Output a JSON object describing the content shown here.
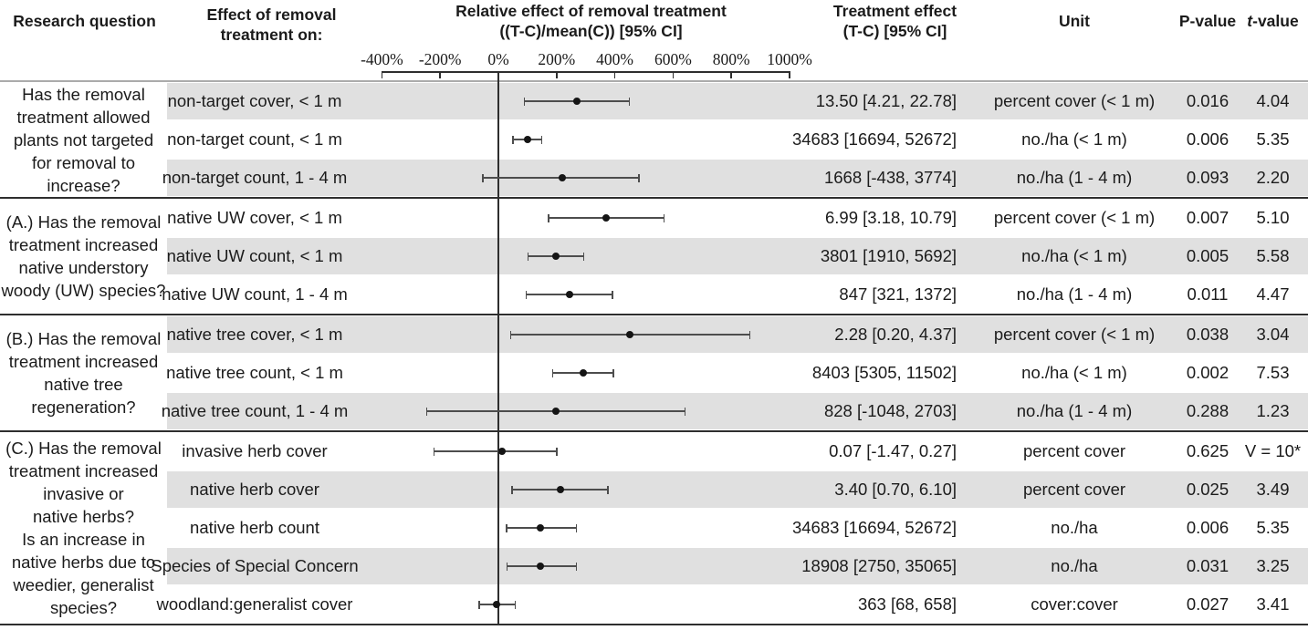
{
  "header": {
    "research_question": "Research question",
    "effect_on": "Effect of removal\ntreatment on:",
    "relative_effect": "Relative effect of removal treatment\n((T-C)/mean(C)) [95% CI]",
    "treatment_effect": "Treatment effect\n(T-C) [95% CI]",
    "unit": "Unit",
    "p_value": "P-value",
    "t_value_italic": "t",
    "t_value_rest": "-value"
  },
  "colors": {
    "stripe": "#e0e0e0",
    "text": "#1b1b1b",
    "dark_line": "#2e2e2e",
    "gray_line": "#ababab",
    "ci_line": "#4d4d4d",
    "marker": "#151515"
  },
  "chart_data": {
    "type": "scatter",
    "variant": "forest-plot",
    "title": "Relative effect of removal treatment ((T-C)/mean(C)) [95% CI]",
    "x_axis": {
      "unit": "percent",
      "tick_values": [
        -400,
        -200,
        0,
        200,
        400,
        600,
        800,
        1000
      ],
      "tick_labels": [
        "-400%",
        "-200%",
        "0%",
        "200%",
        "400%",
        "600%",
        "800%",
        "1000%"
      ],
      "range": [
        -400,
        1000
      ],
      "zero_reference_line": 0
    },
    "groups": [
      {
        "question": "Has the removal\ntreatment allowed\nplants not targeted\nfor removal to\nincrease?",
        "rows": [
          {
            "label": "non-target cover, < 1 m",
            "relative_pct": {
              "est": 270,
              "lo": 87,
              "hi": 452
            },
            "effect": "13.50 [4.21, 22.78]",
            "unit": "percent cover (< 1 m)",
            "p": "0.016",
            "t": "4.04"
          },
          {
            "label": "non-target count, < 1 m",
            "relative_pct": {
              "est": 100,
              "lo": 48,
              "hi": 152
            },
            "effect": "34683 [16694, 52672]",
            "unit": "no./ha (< 1 m)",
            "p": "0.006",
            "t": "5.35"
          },
          {
            "label": "non-target count, 1 - 4 m",
            "relative_pct": {
              "est": 218,
              "lo": -55,
              "hi": 485
            },
            "effect": "1668 [-438, 3774]",
            "unit": "no./ha (1 - 4 m)",
            "p": "0.093",
            "t": "2.20"
          }
        ]
      },
      {
        "question": "(A.) Has the removal\ntreatment increased\nnative understory\nwoody (UW) species?",
        "rows": [
          {
            "label": "native UW cover, < 1 m",
            "relative_pct": {
              "est": 370,
              "lo": 170,
              "hi": 572
            },
            "effect": "6.99 [3.18, 10.79]",
            "unit": "percent cover (< 1 m)",
            "p": "0.007",
            "t": "5.10"
          },
          {
            "label": "native UW count, < 1 m",
            "relative_pct": {
              "est": 197,
              "lo": 99,
              "hi": 295
            },
            "effect": "3801 [1910, 5692]",
            "unit": "no./ha (< 1 m)",
            "p": "0.005",
            "t": "5.58"
          },
          {
            "label": "native UW count, 1 - 4 m",
            "relative_pct": {
              "est": 244,
              "lo": 93,
              "hi": 395
            },
            "effect": "847 [321, 1372]",
            "unit": "no./ha (1 - 4 m)",
            "p": "0.011",
            "t": "4.47"
          }
        ]
      },
      {
        "question": "(B.) Has the removal\ntreatment increased\nnative tree\nregeneration?",
        "rows": [
          {
            "label": "native tree cover, < 1 m",
            "relative_pct": {
              "est": 452,
              "lo": 40,
              "hi": 866
            },
            "effect": "2.28 [0.20, 4.37]",
            "unit": "percent cover (< 1 m)",
            "p": "0.038",
            "t": "3.04"
          },
          {
            "label": "native tree count, < 1 m",
            "relative_pct": {
              "est": 291,
              "lo": 184,
              "hi": 398
            },
            "effect": "8403 [5305, 11502]",
            "unit": "no./ha (< 1 m)",
            "p": "0.002",
            "t": "7.53"
          },
          {
            "label": "native tree count, 1 - 4 m",
            "relative_pct": {
              "est": 197,
              "lo": -248,
              "hi": 643
            },
            "effect": "828 [-1048, 2703]",
            "unit": "no./ha (1 - 4 m)",
            "p": "0.288",
            "t": "1.23"
          }
        ]
      },
      {
        "question": "(C.) Has the removal\ntreatment increased\ninvasive or\nnative herbs?\nIs an increase in\nnative herbs due to\nweedier, generalist\nspecies?",
        "rows": [
          {
            "label": "invasive herb cover",
            "relative_pct": {
              "est": 13,
              "lo": -223,
              "hi": 204
            },
            "effect": "0.07 [-1.47, 0.27]",
            "unit": "percent cover",
            "p": "0.625",
            "t": "V = 10*"
          },
          {
            "label": "native herb cover",
            "relative_pct": {
              "est": 212,
              "lo": 45,
              "hi": 379
            },
            "effect": "3.40 [0.70, 6.10]",
            "unit": "percent cover",
            "p": "0.025",
            "t": "3.49"
          },
          {
            "label": "native herb count",
            "relative_pct": {
              "est": 145,
              "lo": 25,
              "hi": 270
            },
            "effect": "34683 [16694, 52672]",
            "unit": "no./ha",
            "p": "0.006",
            "t": "5.35"
          },
          {
            "label": "Species of Special Concern",
            "relative_pct": {
              "est": 145,
              "lo": 27,
              "hi": 270
            },
            "effect": "18908 [2750, 35065]",
            "unit": "no./ha",
            "p": "0.031",
            "t": "3.25"
          },
          {
            "label": "woodland:generalist cover",
            "relative_pct": {
              "est": -5,
              "lo": -68,
              "hi": 60
            },
            "effect": "363 [68, 658]",
            "unit": "cover:cover",
            "p": "0.027",
            "t": "3.41"
          }
        ]
      }
    ]
  }
}
